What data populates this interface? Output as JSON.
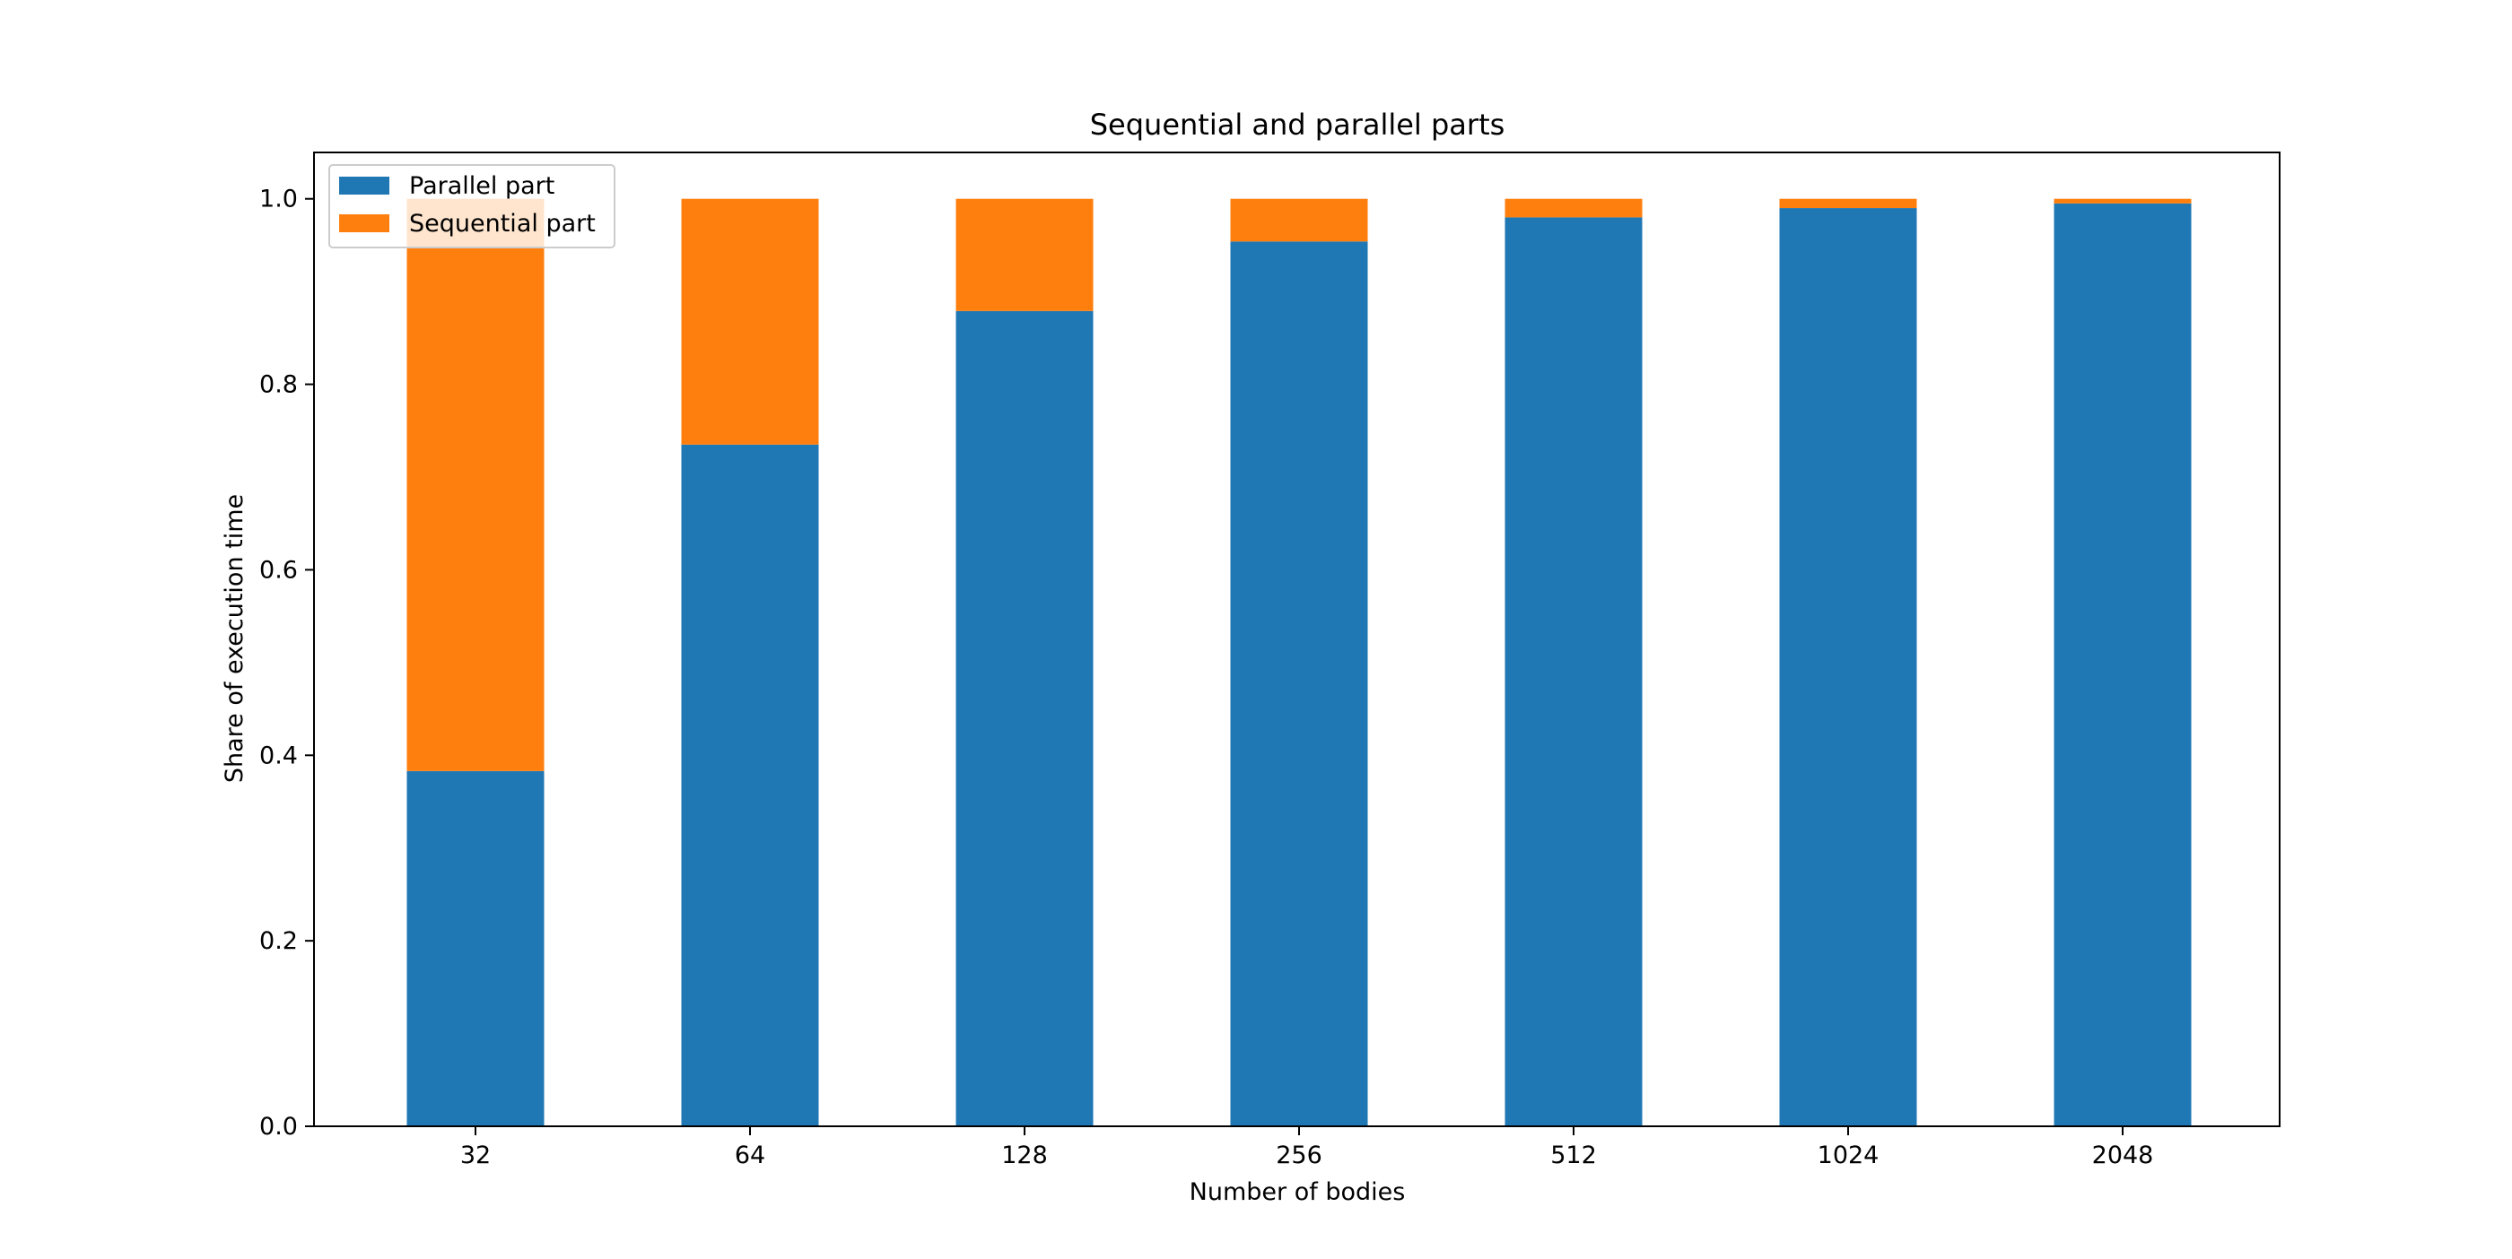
{
  "chart_data": {
    "type": "bar",
    "stacked": true,
    "title": "Sequential and parallel parts",
    "xlabel": "Number of bodies",
    "ylabel": "Share of execution time",
    "categories": [
      "32",
      "64",
      "128",
      "256",
      "512",
      "1024",
      "2048"
    ],
    "series": [
      {
        "name": "Parallel part",
        "color": "#1f77b4",
        "values": [
          0.383,
          0.735,
          0.879,
          0.954,
          0.98,
          0.99,
          0.995
        ]
      },
      {
        "name": "Sequential part",
        "color": "#ff7f0e",
        "values": [
          0.617,
          0.265,
          0.121,
          0.046,
          0.02,
          0.01,
          0.005
        ]
      }
    ],
    "ylim": [
      0,
      1.05
    ],
    "yticks": [
      0.0,
      0.2,
      0.4,
      0.6,
      0.8,
      1.0
    ],
    "ytick_labels": [
      "0.0",
      "0.2",
      "0.4",
      "0.6",
      "0.8",
      "1.0"
    ],
    "grid": false,
    "legend_position": "top-left"
  }
}
